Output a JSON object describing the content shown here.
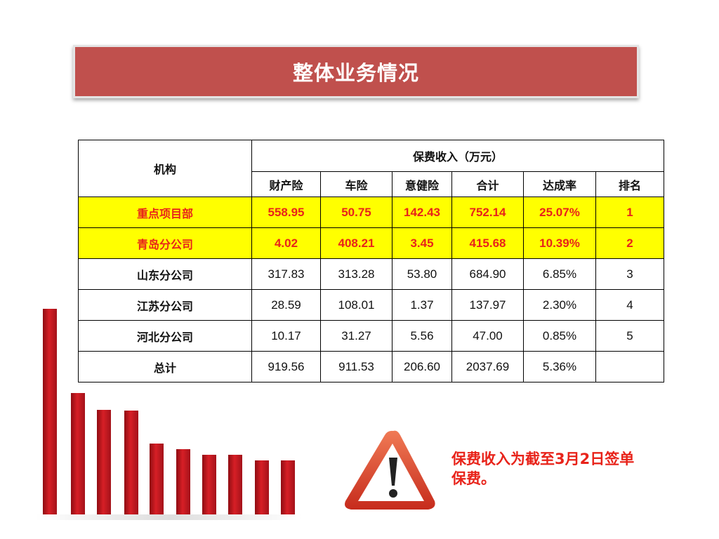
{
  "slide": {
    "title": "整体业务情况"
  },
  "table": {
    "org_header": "机构",
    "group_header": "保费收入（万元）",
    "columns": [
      "财产险",
      "车险",
      "意健险",
      "合计",
      "达成率",
      "排名"
    ],
    "rows": [
      {
        "org": "重点项目部",
        "values": [
          "558.95",
          "50.75",
          "142.43",
          "752.14",
          "25.07%",
          "1"
        ],
        "highlight": true
      },
      {
        "org": "青岛分公司",
        "values": [
          "4.02",
          "408.21",
          "3.45",
          "415.68",
          "10.39%",
          "2"
        ],
        "highlight": true
      },
      {
        "org": "山东分公司",
        "values": [
          "317.83",
          "313.28",
          "53.80",
          "684.90",
          "6.85%",
          "3"
        ],
        "highlight": false
      },
      {
        "org": "江苏分公司",
        "values": [
          "28.59",
          "108.01",
          "1.37",
          "137.97",
          "2.30%",
          "4"
        ],
        "highlight": false
      },
      {
        "org": "河北分公司",
        "values": [
          "10.17",
          "31.27",
          "5.56",
          "47.00",
          "0.85%",
          "5"
        ],
        "highlight": false
      },
      {
        "org": "总计",
        "values": [
          "919.56",
          "911.53",
          "206.60",
          "2037.69",
          "5.36%",
          ""
        ],
        "highlight": false
      }
    ]
  },
  "note": {
    "line1": "保费收入为截至3月2日签单",
    "line2": "保费。"
  },
  "decor": {
    "bar_color": "#c8161d",
    "highlight_color": "#ffff00",
    "accent_text_color": "#e8231a",
    "banner_color": "#c0504d",
    "bar_chart_icon": "decorative-red-bar-chart",
    "warning_icon": "warning-triangle-icon"
  }
}
